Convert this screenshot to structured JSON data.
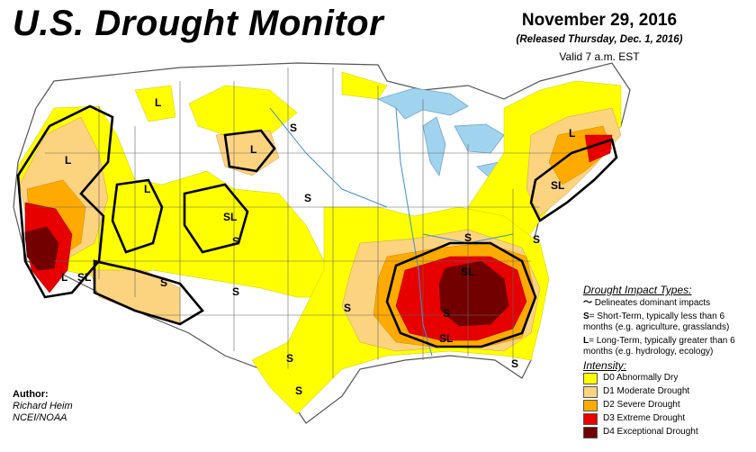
{
  "header": {
    "title": "U.S. Drought Monitor",
    "date": "November 29, 2016",
    "released": "(Released Thursday, Dec. 1, 2016)",
    "valid": "Valid 7 a.m. EST"
  },
  "author": {
    "heading": "Author:",
    "name": "Richard Heim",
    "org": "NCEI/NOAA"
  },
  "legend": {
    "impact_title": "Drought Impact Types:",
    "dominant": "Delineates dominant impacts",
    "short_term_key": "S",
    "short_term": "= Short-Term, typically less than 6 months (e.g. agriculture, grasslands)",
    "long_term_key": "L",
    "long_term": "= Long-Term, typically greater than 6 months (e.g. hydrology, ecology)",
    "intensity_title": "Intensity:",
    "categories": [
      {
        "label": "D0 Abnormally Dry",
        "color": "#ffff00"
      },
      {
        "label": "D1 Moderate Drought",
        "color": "#fcd37f"
      },
      {
        "label": "D2 Severe Drought",
        "color": "#ffaa00"
      },
      {
        "label": "D3 Extreme Drought",
        "color": "#e60000"
      },
      {
        "label": "D4 Exceptional Drought",
        "color": "#730000"
      }
    ]
  },
  "map_labels": [
    {
      "text": "L"
    },
    {
      "text": "L"
    },
    {
      "text": "L"
    },
    {
      "text": "L"
    },
    {
      "text": "SL"
    },
    {
      "text": "S"
    },
    {
      "text": "S"
    },
    {
      "text": "L"
    },
    {
      "text": "SL"
    },
    {
      "text": "S"
    },
    {
      "text": "S"
    },
    {
      "text": "S"
    },
    {
      "text": "SL"
    },
    {
      "text": "SL"
    },
    {
      "text": "S"
    },
    {
      "text": "S"
    },
    {
      "text": "S"
    },
    {
      "text": "L"
    },
    {
      "text": "SL"
    },
    {
      "text": "S"
    },
    {
      "text": "S"
    },
    {
      "text": "S"
    },
    {
      "text": "S"
    }
  ]
}
